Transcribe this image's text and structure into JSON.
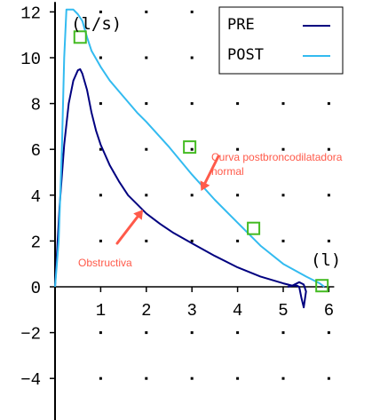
{
  "chart_data": {
    "type": "line",
    "x_unit_label": "(l)",
    "y_unit_label": "(l/s)",
    "xlim": [
      0,
      6
    ],
    "ylim": [
      -5.2,
      12.2
    ],
    "x_ticks": [
      1,
      2,
      3,
      4,
      5,
      6
    ],
    "y_ticks": [
      -4,
      -2,
      0,
      2,
      4,
      6,
      8,
      10,
      12
    ],
    "grid": "dots",
    "legend_position": "top-right",
    "series": [
      {
        "name": "PRE",
        "color": "#000080",
        "x": [
          0,
          0.1,
          0.2,
          0.3,
          0.4,
          0.5,
          0.55,
          0.6,
          0.7,
          0.8,
          0.9,
          1.0,
          1.2,
          1.4,
          1.6,
          1.8,
          2.0,
          2.3,
          2.6,
          3.0,
          3.5,
          4.0,
          4.5,
          5.0,
          5.1,
          5.2,
          5.3,
          5.35,
          5.4,
          5.45,
          5.5,
          5.45,
          5.35,
          5.2,
          5.1
        ],
        "y": [
          0,
          3.5,
          6.2,
          8.0,
          9.0,
          9.45,
          9.5,
          9.3,
          8.6,
          7.6,
          6.8,
          6.2,
          5.3,
          4.6,
          4.0,
          3.6,
          3.2,
          2.75,
          2.35,
          1.9,
          1.35,
          0.85,
          0.45,
          0.15,
          0.1,
          0.05,
          0.05,
          0.0,
          -0.5,
          -0.9,
          -0.2,
          0.1,
          0.2,
          0.05,
          0.0
        ]
      },
      {
        "name": "POST",
        "color": "#33bbf0",
        "x": [
          0,
          0.08,
          0.15,
          0.2,
          0.25,
          0.4,
          0.5,
          0.6,
          0.7,
          0.8,
          1.0,
          1.2,
          1.5,
          1.8,
          2.0,
          2.5,
          3.0,
          3.5,
          4.0,
          4.5,
          5.0,
          5.5,
          5.8,
          5.9
        ],
        "y": [
          0,
          2.0,
          6.0,
          10.0,
          12.1,
          12.1,
          11.9,
          11.6,
          10.9,
          10.3,
          9.6,
          9.0,
          8.3,
          7.6,
          7.2,
          6.1,
          4.9,
          3.8,
          2.8,
          1.8,
          1.0,
          0.45,
          0.15,
          0.0
        ]
      }
    ],
    "markers": {
      "color": "#44bb22",
      "points": [
        [
          0.55,
          10.9
        ],
        [
          2.95,
          6.1
        ],
        [
          4.35,
          2.55
        ],
        [
          5.85,
          0.05
        ]
      ]
    },
    "annotations": [
      {
        "lines": [
          "Curva postbroncodilatadora",
          "normal"
        ],
        "arrow_to": [
          3.2,
          4.3
        ]
      },
      {
        "lines": [
          "Obstructiva"
        ],
        "arrow_to": [
          1.85,
          3.6
        ]
      }
    ]
  }
}
